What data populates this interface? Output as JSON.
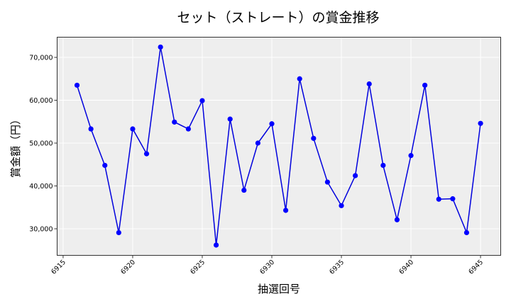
{
  "chart_data": {
    "type": "line",
    "title": "セット（ストレート）の賞金推移",
    "xlabel": "抽選回号",
    "ylabel": "賞金額（円）",
    "x": [
      6916,
      6917,
      6918,
      6919,
      6920,
      6921,
      6922,
      6923,
      6924,
      6925,
      6926,
      6927,
      6928,
      6929,
      6930,
      6931,
      6932,
      6933,
      6934,
      6935,
      6936,
      6937,
      6938,
      6939,
      6940,
      6941,
      6942,
      6943,
      6944,
      6945
    ],
    "series": [
      {
        "name": "賞金額",
        "color": "#0000dd",
        "marker": "circle",
        "values": [
          63500,
          53300,
          44800,
          29100,
          53300,
          47500,
          72400,
          54900,
          53300,
          59900,
          26200,
          55600,
          39000,
          50000,
          54500,
          34300,
          65000,
          51100,
          40900,
          35400,
          42400,
          63800,
          44800,
          32100,
          47100,
          63500,
          36900,
          37000,
          29100,
          54600
        ]
      }
    ],
    "xlim": [
      6914.57,
      6946.45
    ],
    "ylim": [
      23800,
      74710
    ],
    "xticks": [
      6915,
      6920,
      6925,
      6930,
      6935,
      6940,
      6945
    ],
    "yticks": [
      30000,
      40000,
      50000,
      60000,
      70000
    ],
    "ytick_labels": [
      "30,000",
      "40,000",
      "50,000",
      "60,000",
      "70,000"
    ],
    "grid": true,
    "legend": null,
    "background": "#eeeeee"
  }
}
